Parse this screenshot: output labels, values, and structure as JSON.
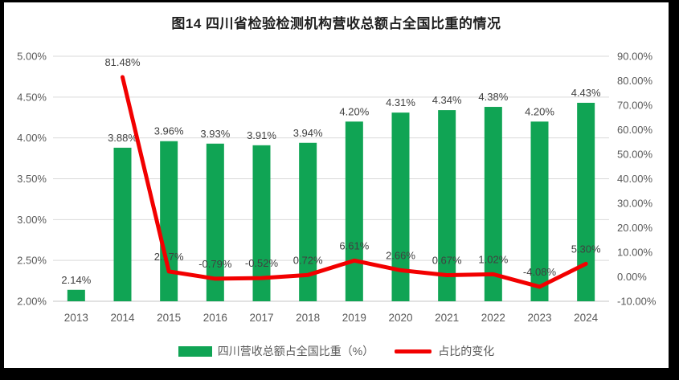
{
  "title": "图14  四川省检验检测机构营收总额占全国比重的情况",
  "chart_data": {
    "type": "combo-bar-line",
    "title": "图14  四川省检验检测机构营收总额占全国比重的情况",
    "categories": [
      "2013",
      "2014",
      "2015",
      "2016",
      "2017",
      "2018",
      "2019",
      "2020",
      "2021",
      "2022",
      "2023",
      "2024"
    ],
    "series": [
      {
        "name": "四川营收总额占全国比重（%）",
        "type": "bar",
        "axis": "left",
        "color": "#10A454",
        "values": [
          2.14,
          3.88,
          3.96,
          3.93,
          3.91,
          3.94,
          4.2,
          4.31,
          4.34,
          4.38,
          4.2,
          4.43
        ],
        "labels": [
          "2.14%",
          "3.88%",
          "3.96%",
          "3.93%",
          "3.91%",
          "3.94%",
          "4.20%",
          "4.31%",
          "4.34%",
          "4.38%",
          "4.20%",
          "4.43%"
        ]
      },
      {
        "name": "占比的变化",
        "type": "line",
        "axis": "right",
        "color": "#F20000",
        "values": [
          null,
          81.48,
          2.17,
          -0.79,
          -0.52,
          0.72,
          6.61,
          2.66,
          0.67,
          1.02,
          -4.08,
          5.3
        ],
        "labels": [
          "",
          "81.48%",
          "2.17%",
          "-0.79%",
          "-0.52%",
          "0.72%",
          "6.61%",
          "2.66%",
          "0.67%",
          "1.02%",
          "-4.08%",
          "5.30%"
        ]
      }
    ],
    "left_axis": {
      "min": 2.0,
      "max": 5.0,
      "tick_values": [
        5.0,
        4.5,
        4.0,
        3.5,
        3.0,
        2.5,
        2.0
      ],
      "tick_labels": [
        "5.00%",
        "4.50%",
        "4.00%",
        "3.50%",
        "3.00%",
        "2.50%",
        "2.00%"
      ]
    },
    "right_axis": {
      "min": -10,
      "max": 90,
      "tick_values": [
        90,
        80,
        70,
        60,
        50,
        40,
        30,
        20,
        10,
        0,
        -10
      ],
      "tick_labels": [
        "90.00%",
        "80.00%",
        "70.00%",
        "60.00%",
        "50.00%",
        "40.00%",
        "30.00%",
        "20.00%",
        "10.00%",
        "0.00%",
        "-10.00%"
      ]
    },
    "grid": true,
    "legend_position": "bottom",
    "colors": {
      "grid": "#D9D9D9",
      "axis_line": "#C6C6C6",
      "tick_text": "#595959",
      "data_label_text": "#404040"
    }
  }
}
